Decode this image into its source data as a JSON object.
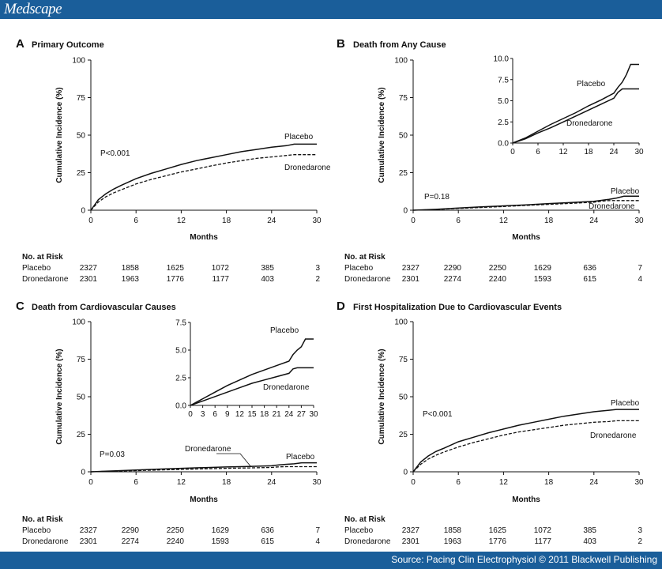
{
  "header": {
    "logo": "Medscape"
  },
  "footer": {
    "source": "Source: Pacing Clin Electrophysiol © 2011 Blackwell Publishing"
  },
  "risk_table": {
    "header": "No. at Risk",
    "row_labels": [
      "Placebo",
      "Dronedarone"
    ]
  },
  "chart_data": [
    {
      "type": "line",
      "panel": "A",
      "title": "Primary Outcome",
      "xlabel": "Months",
      "ylabel": "Cumulative Incidence (%)",
      "xlim": [
        0,
        30
      ],
      "ylim": [
        0,
        100
      ],
      "xticks": [
        0,
        6,
        12,
        18,
        24,
        30
      ],
      "yticks": [
        0,
        25,
        50,
        75,
        100
      ],
      "p_value": "P<0.001",
      "series": [
        {
          "name": "Placebo",
          "style": "solid",
          "x": [
            0,
            1,
            2,
            3,
            4,
            6,
            8,
            10,
            12,
            14,
            16,
            18,
            20,
            22,
            24,
            26,
            27,
            30
          ],
          "y": [
            0,
            7,
            11,
            14,
            16.5,
            21,
            24.5,
            27.5,
            30.5,
            33,
            35,
            37,
            39,
            40.5,
            42,
            43,
            44,
            44
          ]
        },
        {
          "name": "Dronedarone",
          "style": "dashed",
          "x": [
            0,
            1,
            2,
            3,
            4,
            6,
            8,
            10,
            12,
            14,
            16,
            18,
            20,
            22,
            24,
            26,
            27,
            30
          ],
          "y": [
            0,
            5.5,
            9,
            11.5,
            13.5,
            17.5,
            20.5,
            23,
            25.5,
            27.5,
            29.5,
            31.5,
            33,
            34.5,
            35.5,
            36.5,
            37,
            37
          ]
        }
      ],
      "risk": {
        "months": [
          0,
          6,
          12,
          18,
          24,
          30
        ],
        "Placebo": [
          2327,
          1858,
          1625,
          1072,
          385,
          3
        ],
        "Dronedarone": [
          2301,
          1963,
          1776,
          1177,
          403,
          2
        ]
      }
    },
    {
      "type": "line",
      "panel": "B",
      "title": "Death from Any Cause",
      "xlabel": "Months",
      "ylabel": "Cumulative Incidence (%)",
      "xlim": [
        0,
        30
      ],
      "ylim": [
        0,
        100
      ],
      "xticks": [
        0,
        6,
        12,
        18,
        24,
        30
      ],
      "yticks": [
        0,
        25,
        50,
        75,
        100
      ],
      "p_value": "P=0.18",
      "series": [
        {
          "name": "Placebo",
          "style": "solid",
          "x": [
            0,
            3,
            6,
            9,
            12,
            15,
            18,
            21,
            24,
            25,
            26,
            27,
            28,
            30
          ],
          "y": [
            0,
            0.6,
            1.4,
            2.2,
            2.9,
            3.6,
            4.4,
            5.1,
            5.9,
            6.6,
            7.2,
            8.1,
            9.3,
            9.3
          ]
        },
        {
          "name": "Dronedarone",
          "style": "dashed",
          "x": [
            0,
            3,
            6,
            9,
            12,
            15,
            18,
            21,
            24,
            25,
            26,
            30
          ],
          "y": [
            0,
            0.5,
            1.2,
            1.8,
            2.5,
            3.2,
            3.9,
            4.6,
            5.3,
            6.0,
            6.4,
            6.4
          ]
        }
      ],
      "inset": {
        "xlim": [
          0,
          30
        ],
        "ylim": [
          0,
          10
        ],
        "xticks": [
          0,
          6,
          12,
          18,
          24,
          30
        ],
        "yticks": [
          0.0,
          2.5,
          5.0,
          7.5,
          10.0
        ],
        "ytick_labels": [
          "0.0",
          "2.5",
          "5.0",
          "7.5",
          "10.0"
        ]
      },
      "risk": {
        "months": [
          0,
          6,
          12,
          18,
          24,
          30
        ],
        "Placebo": [
          2327,
          2290,
          2250,
          1629,
          636,
          7
        ],
        "Dronedarone": [
          2301,
          2274,
          2240,
          1593,
          615,
          4
        ]
      }
    },
    {
      "type": "line",
      "panel": "C",
      "title": "Death from Cardiovascular Causes",
      "xlabel": "Months",
      "ylabel": "Cumulative Incidence (%)",
      "xlim": [
        0,
        30
      ],
      "ylim": [
        0,
        100
      ],
      "xticks": [
        0,
        6,
        12,
        18,
        24,
        30
      ],
      "yticks": [
        0,
        25,
        50,
        75,
        100
      ],
      "p_value": "P=0.03",
      "series": [
        {
          "name": "Placebo",
          "style": "solid",
          "x": [
            0,
            3,
            6,
            9,
            12,
            15,
            18,
            21,
            24,
            25,
            26,
            27,
            28,
            30
          ],
          "y": [
            0,
            0.6,
            1.2,
            1.8,
            2.3,
            2.8,
            3.2,
            3.6,
            4.0,
            4.6,
            5.0,
            5.3,
            6.0,
            6.0
          ]
        },
        {
          "name": "Dronedarone",
          "style": "dashed",
          "x": [
            0,
            3,
            6,
            9,
            12,
            15,
            18,
            21,
            24,
            25,
            26,
            30
          ],
          "y": [
            0,
            0.4,
            0.8,
            1.2,
            1.6,
            2.0,
            2.3,
            2.6,
            2.9,
            3.3,
            3.4,
            3.4
          ]
        }
      ],
      "inset": {
        "xlim": [
          0,
          30
        ],
        "ylim": [
          0,
          7.5
        ],
        "xticks": [
          0,
          3,
          6,
          9,
          12,
          15,
          18,
          21,
          24,
          27,
          30
        ],
        "yticks": [
          0.0,
          2.5,
          5.0,
          7.5
        ],
        "ytick_labels": [
          "0.0",
          "2.5",
          "5.0",
          "7.5"
        ]
      },
      "risk": {
        "months": [
          0,
          6,
          12,
          18,
          24,
          30
        ],
        "Placebo": [
          2327,
          2290,
          2250,
          1629,
          636,
          7
        ],
        "Dronedarone": [
          2301,
          2274,
          2240,
          1593,
          615,
          4
        ]
      }
    },
    {
      "type": "line",
      "panel": "D",
      "title": "First Hospitalization Due to Cardiovascular Events",
      "xlabel": "Months",
      "ylabel": "Cumulative Incidence (%)",
      "xlim": [
        0,
        30
      ],
      "ylim": [
        0,
        100
      ],
      "xticks": [
        0,
        6,
        12,
        18,
        24,
        30
      ],
      "yticks": [
        0,
        25,
        50,
        75,
        100
      ],
      "p_value": "P<0.001",
      "series": [
        {
          "name": "Placebo",
          "style": "solid",
          "x": [
            0,
            1,
            2,
            3,
            4,
            6,
            8,
            10,
            12,
            14,
            16,
            18,
            20,
            22,
            24,
            26,
            27,
            30
          ],
          "y": [
            0,
            6.5,
            10.5,
            13.5,
            15.5,
            20,
            23,
            26,
            28.5,
            31,
            33,
            35,
            37,
            38.5,
            40,
            41,
            41.5,
            41.5
          ]
        },
        {
          "name": "Dronedarone",
          "style": "dashed",
          "x": [
            0,
            1,
            2,
            3,
            4,
            6,
            8,
            10,
            12,
            14,
            16,
            18,
            20,
            22,
            24,
            26,
            27,
            30
          ],
          "y": [
            0,
            5,
            8.5,
            11,
            13,
            16.5,
            19.5,
            22,
            24.5,
            26.5,
            28,
            29.5,
            31,
            32,
            33,
            33.5,
            34,
            34
          ]
        }
      ],
      "risk": {
        "months": [
          0,
          6,
          12,
          18,
          24,
          30
        ],
        "Placebo": [
          2327,
          1858,
          1625,
          1072,
          385,
          3
        ],
        "Dronedarone": [
          2301,
          1963,
          1776,
          1177,
          403,
          2
        ]
      }
    }
  ]
}
